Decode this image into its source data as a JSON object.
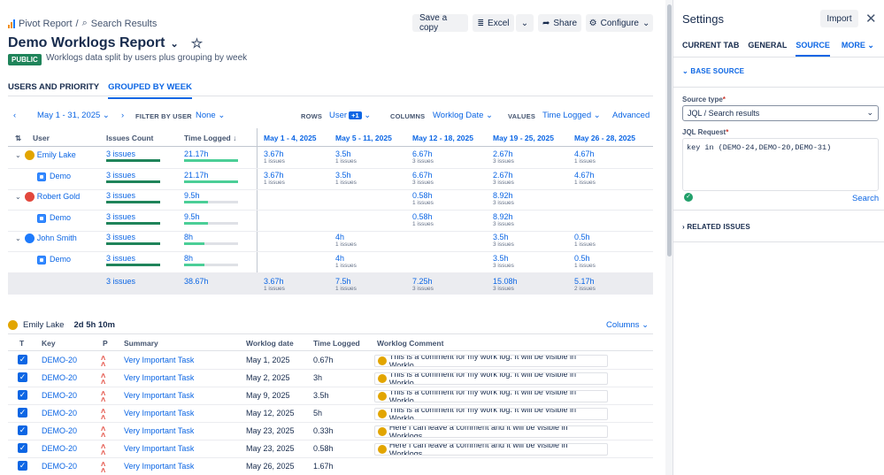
{
  "breadcrumb": {
    "root": "Pivot Report",
    "sep": "/",
    "current": "Search Results"
  },
  "title": "Demo Worklogs Report",
  "badge": "PUBLIC",
  "subtitle": "Worklogs data split by users plus grouping by week",
  "toolbar": {
    "save_copy": "Save a copy",
    "excel": "Excel",
    "share": "Share",
    "configure": "Configure"
  },
  "tabs": [
    "USERS AND PRIORITY",
    "GROUPED BY WEEK"
  ],
  "controls": {
    "date_range": "May 1 - 31, 2025",
    "filter_label": "FILTER BY USER",
    "filter_value": "None",
    "rows_label": "ROWS",
    "rows_value": "User",
    "rows_extra": "+1",
    "columns_label": "COLUMNS",
    "columns_value": "Worklog Date",
    "values_label": "VALUES",
    "values_value": "Time Logged",
    "advanced": "Advanced"
  },
  "pivot": {
    "headers": {
      "user": "User",
      "issues": "Issues Count",
      "time": "Time Logged"
    },
    "weeks": [
      "May 1 - 4, 2025",
      "May 5 - 11, 2025",
      "May 12 - 18, 2025",
      "May 19 - 25, 2025",
      "May 26 - 28, 2025"
    ],
    "rows": [
      {
        "label": "Emily Lake",
        "kind": "user",
        "color": "#e2a500",
        "issues": "3 issues",
        "issues_pct": 100,
        "time": "21.17h",
        "time_pct": 100,
        "cells": [
          {
            "v": "3.67h",
            "s": "1 issues"
          },
          {
            "v": "3.5h",
            "s": "1 issues"
          },
          {
            "v": "6.67h",
            "s": "3 issues"
          },
          {
            "v": "2.67h",
            "s": "3 issues"
          },
          {
            "v": "4.67h",
            "s": "1 issues"
          }
        ]
      },
      {
        "label": "Demo",
        "kind": "project",
        "issues": "3 issues",
        "issues_pct": 100,
        "time": "21.17h",
        "time_pct": 100,
        "cells": [
          {
            "v": "3.67h",
            "s": "1 issues"
          },
          {
            "v": "3.5h",
            "s": "1 issues"
          },
          {
            "v": "6.67h",
            "s": "3 issues"
          },
          {
            "v": "2.67h",
            "s": "3 issues"
          },
          {
            "v": "4.67h",
            "s": "1 issues"
          }
        ]
      },
      {
        "label": "Robert Gold",
        "kind": "user",
        "color": "#e2483d",
        "issues": "3 issues",
        "issues_pct": 100,
        "time": "9.5h",
        "time_pct": 45,
        "cells": [
          null,
          null,
          {
            "v": "0.58h",
            "s": "1 issues"
          },
          {
            "v": "8.92h",
            "s": "3 issues"
          },
          null
        ]
      },
      {
        "label": "Demo",
        "kind": "project",
        "issues": "3 issues",
        "issues_pct": 100,
        "time": "9.5h",
        "time_pct": 45,
        "cells": [
          null,
          null,
          {
            "v": "0.58h",
            "s": "1 issues"
          },
          {
            "v": "8.92h",
            "s": "3 issues"
          },
          null
        ]
      },
      {
        "label": "John Smith",
        "kind": "user",
        "color": "#1d7afc",
        "issues": "3 issues",
        "issues_pct": 100,
        "time": "8h",
        "time_pct": 38,
        "cells": [
          null,
          {
            "v": "4h",
            "s": "1 issues"
          },
          null,
          {
            "v": "3.5h",
            "s": "3 issues"
          },
          {
            "v": "0.5h",
            "s": "1 issues"
          }
        ]
      },
      {
        "label": "Demo",
        "kind": "project",
        "issues": "3 issues",
        "issues_pct": 100,
        "time": "8h",
        "time_pct": 38,
        "cells": [
          null,
          {
            "v": "4h",
            "s": "1 issues"
          },
          null,
          {
            "v": "3.5h",
            "s": "3 issues"
          },
          {
            "v": "0.5h",
            "s": "1 issues"
          }
        ]
      }
    ],
    "total": {
      "issues": "3 issues",
      "time": "38.67h",
      "cells": [
        {
          "v": "3.67h",
          "s": "1 issues"
        },
        {
          "v": "7.5h",
          "s": "1 issues"
        },
        {
          "v": "7.25h",
          "s": "3 issues"
        },
        {
          "v": "15.08h",
          "s": "3 issues"
        },
        {
          "v": "5.17h",
          "s": "2 issues"
        }
      ]
    }
  },
  "worklogs": {
    "user": "Emily Lake",
    "total": "2d 5h 10m",
    "columns_button": "Columns",
    "headers": [
      "T",
      "Key",
      "P",
      "Summary",
      "Worklog date",
      "Time Logged",
      "Worklog Comment"
    ],
    "rows": [
      {
        "key": "DEMO-20",
        "summary": "Very Important Task",
        "date": "May 1, 2025",
        "time": "0.67h",
        "comment": "This is a comment for my work log. It will be visible in Worklo..."
      },
      {
        "key": "DEMO-20",
        "summary": "Very Important Task",
        "date": "May 2, 2025",
        "time": "3h",
        "comment": "This is a comment for my work log. It will be visible in Worklo..."
      },
      {
        "key": "DEMO-20",
        "summary": "Very Important Task",
        "date": "May 9, 2025",
        "time": "3.5h",
        "comment": "This is a comment for my work log. It will be visible in Worklo..."
      },
      {
        "key": "DEMO-20",
        "summary": "Very Important Task",
        "date": "May 12, 2025",
        "time": "5h",
        "comment": "This is a comment for my work log. It will be visible in Worklo..."
      },
      {
        "key": "DEMO-20",
        "summary": "Very Important Task",
        "date": "May 23, 2025",
        "time": "0.33h",
        "comment": "Here I can leave a comment and it will be visible in Worklogs..."
      },
      {
        "key": "DEMO-20",
        "summary": "Very Important Task",
        "date": "May 23, 2025",
        "time": "0.58h",
        "comment": "Here I can leave a comment and it will be visible in Worklogs..."
      },
      {
        "key": "DEMO-20",
        "summary": "Very Important Task",
        "date": "May 26, 2025",
        "time": "1.67h",
        "comment": ""
      }
    ]
  },
  "settings": {
    "title": "Settings",
    "import": "Import",
    "tabs": [
      "CURRENT TAB",
      "GENERAL",
      "SOURCE",
      "MORE"
    ],
    "base_source": "BASE SOURCE",
    "source_type_label": "Source type",
    "source_type_value": "JQL / Search results",
    "jql_label": "JQL Request",
    "jql_value": "key in (DEMO-24,DEMO-20,DEMO-31)",
    "search": "Search",
    "related": "RELATED ISSUES"
  },
  "colors": {
    "accent": "#0c66e4",
    "green_bar": "#1f845a",
    "time_bar": "#4bce97",
    "public": "#1f845a"
  }
}
